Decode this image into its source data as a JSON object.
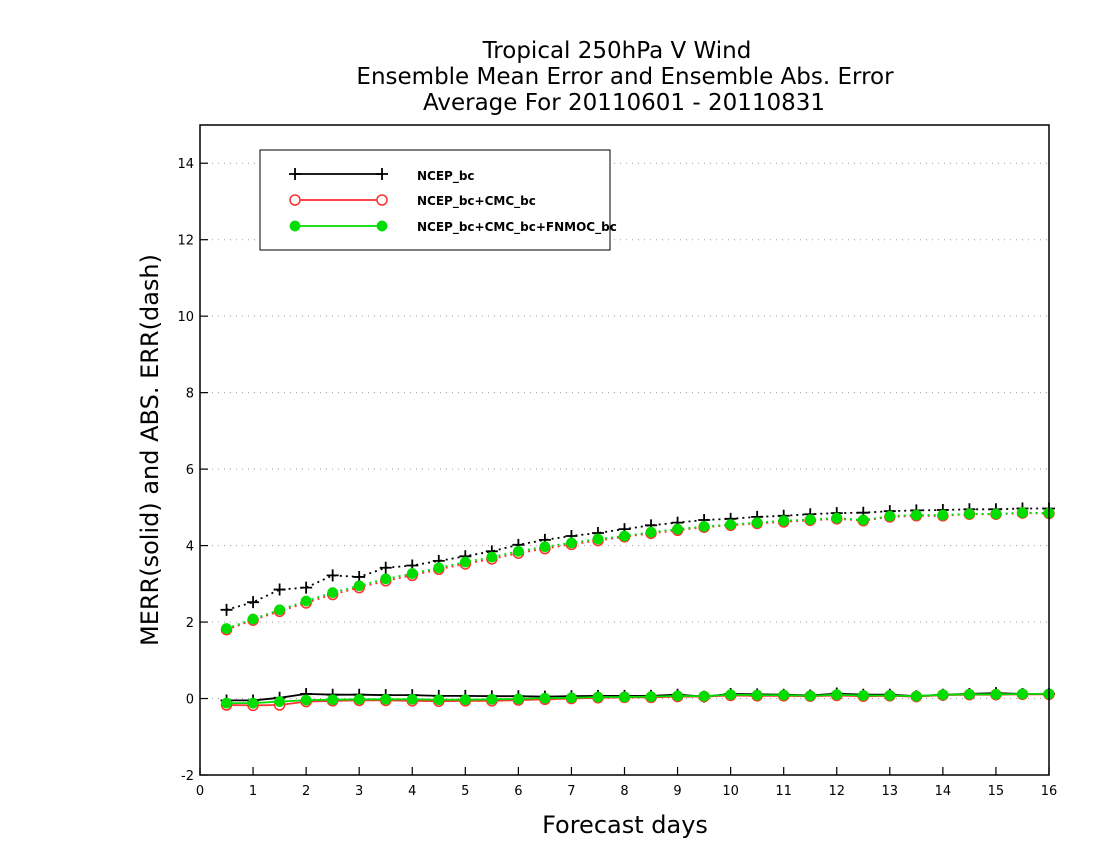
{
  "chart_data": {
    "type": "line",
    "title_lines": [
      "Tropical 250hPa V Wind",
      "Ensemble Mean Error and Ensemble Abs. Error",
      "Average For 20110601 - 20110831"
    ],
    "xlabel": "Forecast days",
    "ylabel": "MERR(solid) and ABS. ERR(dash)",
    "xlim": [
      0,
      16
    ],
    "ylim": [
      -2,
      15
    ],
    "xticks": [
      0,
      1,
      2,
      3,
      4,
      5,
      6,
      7,
      8,
      9,
      10,
      11,
      12,
      13,
      14,
      15,
      16
    ],
    "yticks": [
      -2,
      0,
      2,
      4,
      6,
      8,
      10,
      12,
      14
    ],
    "grid": "horizontal dotted",
    "legend_position": "top-left",
    "x": [
      0.5,
      1,
      1.5,
      2,
      2.5,
      3,
      3.5,
      4,
      4.5,
      5,
      5.5,
      6,
      6.5,
      7,
      7.5,
      8,
      8.5,
      9,
      9.5,
      10,
      10.5,
      11,
      11.5,
      12,
      12.5,
      13,
      13.5,
      14,
      14.5,
      15,
      15.5,
      16
    ],
    "series": [
      {
        "name": "NCEP_bc",
        "color": "#000000",
        "marker": "plus",
        "merr": [
          -0.05,
          -0.05,
          0.02,
          0.12,
          0.1,
          0.1,
          0.09,
          0.09,
          0.07,
          0.07,
          0.06,
          0.06,
          0.05,
          0.06,
          0.07,
          0.07,
          0.07,
          0.1,
          0.05,
          0.12,
          0.11,
          0.1,
          0.08,
          0.13,
          0.1,
          0.1,
          0.06,
          0.1,
          0.12,
          0.14,
          0.12,
          0.12
        ],
        "abs_err": [
          2.32,
          2.52,
          2.85,
          2.9,
          3.22,
          3.18,
          3.42,
          3.48,
          3.6,
          3.72,
          3.85,
          4.02,
          4.15,
          4.25,
          4.33,
          4.43,
          4.53,
          4.6,
          4.67,
          4.7,
          4.75,
          4.78,
          4.82,
          4.85,
          4.86,
          4.9,
          4.92,
          4.93,
          4.95,
          4.95,
          4.97,
          4.97
        ]
      },
      {
        "name": "NCEP_bc+CMC_bc",
        "color": "#ff3030",
        "marker": "open-circle",
        "merr": [
          -0.17,
          -0.18,
          -0.17,
          -0.08,
          -0.06,
          -0.05,
          -0.05,
          -0.06,
          -0.07,
          -0.06,
          -0.06,
          -0.04,
          -0.02,
          0.0,
          0.02,
          0.03,
          0.03,
          0.05,
          0.05,
          0.08,
          0.07,
          0.07,
          0.06,
          0.08,
          0.06,
          0.07,
          0.05,
          0.09,
          0.1,
          0.1,
          0.11,
          0.11
        ],
        "abs_err": [
          1.8,
          2.05,
          2.28,
          2.5,
          2.72,
          2.9,
          3.08,
          3.22,
          3.38,
          3.52,
          3.65,
          3.8,
          3.92,
          4.03,
          4.13,
          4.23,
          4.32,
          4.4,
          4.48,
          4.53,
          4.58,
          4.62,
          4.66,
          4.7,
          4.65,
          4.75,
          4.78,
          4.78,
          4.82,
          4.82,
          4.85,
          4.84
        ]
      },
      {
        "name": "NCEP_bc+CMC_bc+FNMOC_bc",
        "color": "#00dd00",
        "marker": "filled-circle",
        "merr": [
          -0.12,
          -0.12,
          -0.08,
          -0.04,
          -0.03,
          -0.02,
          -0.02,
          -0.02,
          -0.03,
          -0.03,
          -0.02,
          -0.01,
          0.01,
          0.02,
          0.04,
          0.04,
          0.05,
          0.07,
          0.06,
          0.1,
          0.09,
          0.09,
          0.07,
          0.1,
          0.08,
          0.08,
          0.06,
          0.1,
          0.11,
          0.11,
          0.12,
          0.12
        ],
        "abs_err": [
          1.83,
          2.08,
          2.32,
          2.55,
          2.77,
          2.95,
          3.13,
          3.27,
          3.42,
          3.57,
          3.7,
          3.85,
          3.97,
          4.07,
          4.17,
          4.25,
          4.35,
          4.43,
          4.5,
          4.55,
          4.6,
          4.65,
          4.68,
          4.72,
          4.67,
          4.77,
          4.8,
          4.8,
          4.83,
          4.83,
          4.86,
          4.85
        ]
      }
    ]
  }
}
